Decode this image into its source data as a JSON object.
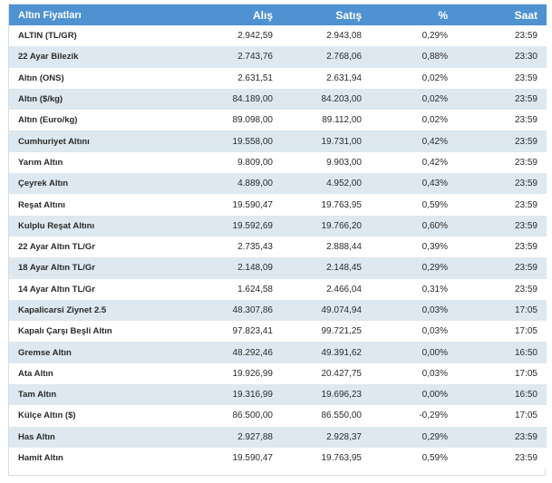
{
  "table": {
    "headers": [
      "Altın Fiyatları",
      "Alış",
      "Satış",
      "%",
      "Saat"
    ],
    "rows": [
      [
        "ALTIN (TL/GR)",
        "2.942,59",
        "2.943,08",
        "0,29%",
        "23:59"
      ],
      [
        "22 Ayar Bilezik",
        "2.743,76",
        "2.768,06",
        "0,88%",
        "23:30"
      ],
      [
        "Altın (ONS)",
        "2.631,51",
        "2.631,94",
        "0,02%",
        "23:59"
      ],
      [
        "Altın ($/kg)",
        "84.189,00",
        "84.203,00",
        "0,02%",
        "23:59"
      ],
      [
        "Altın (Euro/kg)",
        "89.098,00",
        "89.112,00",
        "0,02%",
        "23:59"
      ],
      [
        "Cumhuriyet Altını",
        "19.558,00",
        "19.731,00",
        "0,42%",
        "23:59"
      ],
      [
        "Yarım Altın",
        "9.809,00",
        "9.903,00",
        "0,42%",
        "23:59"
      ],
      [
        "Çeyrek Altın",
        "4.889,00",
        "4.952,00",
        "0,43%",
        "23:59"
      ],
      [
        "Reşat Altını",
        "19.590,47",
        "19.763,95",
        "0,59%",
        "23:59"
      ],
      [
        "Kulplu Reşat Altını",
        "19.592,69",
        "19.766,20",
        "0,60%",
        "23:59"
      ],
      [
        "22 Ayar Altın TL/Gr",
        "2.735,43",
        "2.888,44",
        "0,39%",
        "23:59"
      ],
      [
        "18 Ayar Altın TL/Gr",
        "2.148,09",
        "2.148,45",
        "0,29%",
        "23:59"
      ],
      [
        "14 Ayar Altın TL/Gr",
        "1.624,58",
        "2.466,04",
        "0,31%",
        "23:59"
      ],
      [
        "Kapalicarsi Ziynet 2.5",
        "48.307,86",
        "49.074,94",
        "0,03%",
        "17:05"
      ],
      [
        "Kapalı Çarşı Beşli Altın",
        "97.823,41",
        "99.721,25",
        "0,03%",
        "17:05"
      ],
      [
        "Gremse Altın",
        "48.292,46",
        "49.391,62",
        "0,00%",
        "16:50"
      ],
      [
        "Ata Altın",
        "19.926,99",
        "20.427,75",
        "0,03%",
        "17:05"
      ],
      [
        "Tam Altın",
        "19.316,99",
        "19.696,23",
        "0,00%",
        "16:50"
      ],
      [
        "Külçe Altın ($)",
        "86.500,00",
        "86.550,00",
        "-0,29%",
        "17:05"
      ],
      [
        "Has Altın",
        "2.927,88",
        "2.928,37",
        "0,29%",
        "23:59"
      ],
      [
        "Hamit Altın",
        "19.590,47",
        "19.763,95",
        "0,59%",
        "23:59"
      ]
    ]
  }
}
